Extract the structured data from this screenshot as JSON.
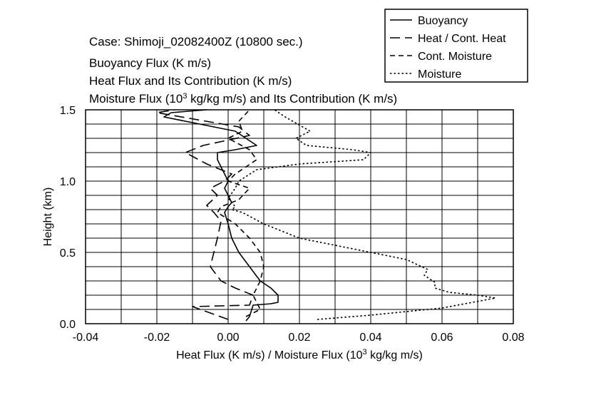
{
  "chart_data": {
    "type": "line",
    "title_lines": [
      {
        "text": "Case: Shimoji_02082400Z (10800 sec.)"
      },
      {
        "text": "Buoyancy Flux (K m/s)"
      },
      {
        "text": "Heat Flux and Its Contribution (K m/s)"
      },
      {
        "pre": "Moisture Flux (10",
        "sup": "3",
        "post": " kg/kg m/s) and Its Contribution (K m/s)"
      }
    ],
    "xlabel": {
      "pre": "Heat Flux (K m/s) / Moisture Flux (10",
      "sup": "3",
      "post": " kg/kg m/s)"
    },
    "ylabel": "Height (km)",
    "xlim": [
      -0.04,
      0.08
    ],
    "ylim": [
      0.0,
      1.5
    ],
    "x_ticks": [
      {
        "value": -0.04,
        "label": "-0.04"
      },
      {
        "value": -0.02,
        "label": "-0.02"
      },
      {
        "value": 0.0,
        "label": "0.00"
      },
      {
        "value": 0.02,
        "label": "0.02"
      },
      {
        "value": 0.04,
        "label": "0.04"
      },
      {
        "value": 0.06,
        "label": "0.06"
      },
      {
        "value": 0.08,
        "label": "0.08"
      }
    ],
    "y_ticks": [
      {
        "value": 0.0,
        "label": "0.0"
      },
      {
        "value": 0.5,
        "label": "0.5"
      },
      {
        "value": 1.0,
        "label": "1.0"
      },
      {
        "value": 1.5,
        "label": "1.5"
      }
    ],
    "x_grid_step": 0.01,
    "y_grid_step": 0.1,
    "grid": true,
    "legend_position": "top-right",
    "series": [
      {
        "name": "Buoyancy",
        "style": "solid",
        "points": [
          [
            0.005,
            0.02
          ],
          [
            0.006,
            0.05
          ],
          [
            0.007,
            0.13
          ],
          [
            0.012,
            0.14
          ],
          [
            0.014,
            0.15
          ],
          [
            0.014,
            0.2
          ],
          [
            0.012,
            0.25
          ],
          [
            0.009,
            0.3
          ],
          [
            0.006,
            0.4
          ],
          [
            0.003,
            0.5
          ],
          [
            0.001,
            0.6
          ],
          [
            0.0,
            0.7
          ],
          [
            -0.001,
            0.78
          ],
          [
            0.0,
            0.82
          ],
          [
            0.001,
            0.85
          ],
          [
            0.0,
            0.9
          ],
          [
            -0.001,
            0.95
          ],
          [
            0.0,
            1.0
          ],
          [
            -0.001,
            1.05
          ],
          [
            -0.002,
            1.1
          ],
          [
            -0.003,
            1.15
          ],
          [
            -0.003,
            1.2
          ],
          [
            0.002,
            1.22
          ],
          [
            0.008,
            1.25
          ],
          [
            0.005,
            1.3
          ],
          [
            0.002,
            1.35
          ],
          [
            -0.008,
            1.4
          ],
          [
            -0.018,
            1.45
          ],
          [
            -0.016,
            1.48
          ],
          [
            -0.006,
            1.5
          ]
        ]
      },
      {
        "name": "Heat / Cont. Heat",
        "style": "longdash",
        "points": [
          [
            0.0,
            0.03
          ],
          [
            -0.01,
            0.12
          ],
          [
            0.006,
            0.13
          ],
          [
            0.007,
            0.2
          ],
          [
            0.002,
            0.25
          ],
          [
            -0.002,
            0.3
          ],
          [
            -0.005,
            0.4
          ],
          [
            -0.004,
            0.5
          ],
          [
            -0.003,
            0.6
          ],
          [
            -0.002,
            0.72
          ],
          [
            -0.004,
            0.78
          ],
          [
            -0.006,
            0.83
          ],
          [
            -0.003,
            0.9
          ],
          [
            -0.005,
            0.95
          ],
          [
            -0.001,
            1.0
          ],
          [
            0.001,
            1.05
          ],
          [
            -0.006,
            1.12
          ],
          [
            -0.012,
            1.2
          ],
          [
            -0.007,
            1.25
          ],
          [
            0.006,
            1.32
          ],
          [
            0.003,
            1.38
          ],
          [
            -0.02,
            1.48
          ],
          [
            -0.015,
            1.5
          ]
        ]
      },
      {
        "name": "Cont. Moisture",
        "style": "dash",
        "points": [
          [
            0.005,
            0.05
          ],
          [
            0.009,
            0.1
          ],
          [
            0.007,
            0.2
          ],
          [
            0.009,
            0.3
          ],
          [
            0.01,
            0.4
          ],
          [
            0.009,
            0.5
          ],
          [
            0.006,
            0.6
          ],
          [
            0.002,
            0.7
          ],
          [
            -0.003,
            0.78
          ],
          [
            -0.002,
            0.82
          ],
          [
            0.003,
            0.87
          ],
          [
            0.006,
            0.95
          ],
          [
            0.0,
            1.0
          ],
          [
            0.002,
            1.05
          ],
          [
            0.008,
            1.15
          ],
          [
            0.006,
            1.22
          ],
          [
            0.0,
            1.3
          ],
          [
            0.004,
            1.35
          ],
          [
            0.003,
            1.42
          ],
          [
            0.006,
            1.5
          ]
        ]
      },
      {
        "name": "Moisture",
        "style": "dot",
        "points": [
          [
            0.025,
            0.03
          ],
          [
            0.04,
            0.06
          ],
          [
            0.06,
            0.11
          ],
          [
            0.075,
            0.18
          ],
          [
            0.07,
            0.2
          ],
          [
            0.062,
            0.22
          ],
          [
            0.058,
            0.25
          ],
          [
            0.058,
            0.29
          ],
          [
            0.055,
            0.34
          ],
          [
            0.056,
            0.38
          ],
          [
            0.05,
            0.45
          ],
          [
            0.04,
            0.5
          ],
          [
            0.03,
            0.55
          ],
          [
            0.02,
            0.6
          ],
          [
            0.01,
            0.7
          ],
          [
            0.004,
            0.78
          ],
          [
            0.001,
            0.8
          ],
          [
            0.002,
            0.82
          ],
          [
            0.0,
            0.88
          ],
          [
            0.002,
            0.95
          ],
          [
            0.003,
            1.0
          ],
          [
            0.008,
            1.08
          ],
          [
            0.02,
            1.12
          ],
          [
            0.038,
            1.15
          ],
          [
            0.04,
            1.2
          ],
          [
            0.035,
            1.22
          ],
          [
            0.022,
            1.25
          ],
          [
            0.019,
            1.3
          ],
          [
            0.023,
            1.35
          ],
          [
            0.016,
            1.45
          ],
          [
            0.013,
            1.5
          ]
        ]
      }
    ]
  }
}
